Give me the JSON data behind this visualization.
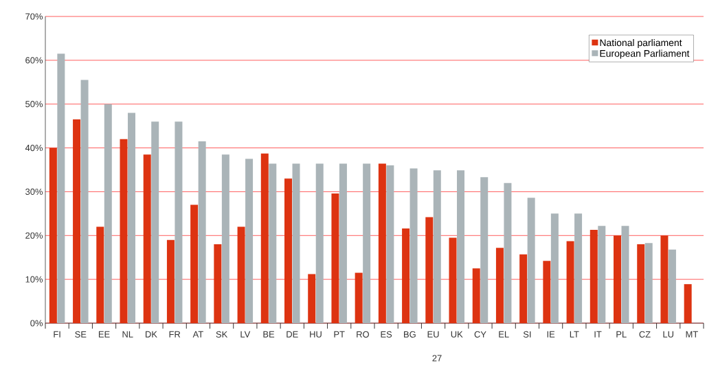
{
  "chart_data": {
    "type": "bar",
    "categories": [
      "FI",
      "SE",
      "EE",
      "NL",
      "DK",
      "FR",
      "AT",
      "SK",
      "LV",
      "BE",
      "DE",
      "HU",
      "PT",
      "RO",
      "ES",
      "BG",
      "EU",
      "UK",
      "CY",
      "EL",
      "SI",
      "IE",
      "LT",
      "IT",
      "PL",
      "CZ",
      "LU",
      "MT"
    ],
    "series": [
      {
        "name": "National parliament",
        "color": "#dd3311",
        "values": [
          40,
          46.5,
          22,
          42,
          38.5,
          19,
          27,
          18,
          22,
          38.7,
          33,
          11.2,
          29.6,
          11.5,
          36.4,
          21.6,
          24.2,
          19.5,
          12.5,
          17.2,
          15.7,
          14.2,
          18.7,
          21.3,
          20,
          18,
          20,
          8.9
        ]
      },
      {
        "name": "European Parliament",
        "color": "#aab4b8",
        "values": [
          61.5,
          55.5,
          50,
          48,
          46,
          46,
          41.5,
          38.5,
          37.5,
          36.4,
          36.4,
          36.4,
          36.4,
          36.4,
          36,
          35.3,
          34.9,
          34.9,
          33.3,
          32,
          28.6,
          25,
          25,
          22.2,
          22.2,
          18.3,
          16.8,
          0
        ]
      }
    ],
    "ylim": [
      0,
      70
    ],
    "yticks": [
      {
        "value": 0,
        "label": "0%"
      },
      {
        "value": 10,
        "label": "10%"
      },
      {
        "value": 20,
        "label": "20%"
      },
      {
        "value": 30,
        "label": "30%"
      },
      {
        "value": 40,
        "label": "40%"
      },
      {
        "value": 50,
        "label": "50%"
      },
      {
        "value": 60,
        "label": "60%"
      },
      {
        "value": 70,
        "label": "70%"
      }
    ],
    "grid": "y",
    "legend": "top right",
    "annotations": [
      "27"
    ]
  }
}
